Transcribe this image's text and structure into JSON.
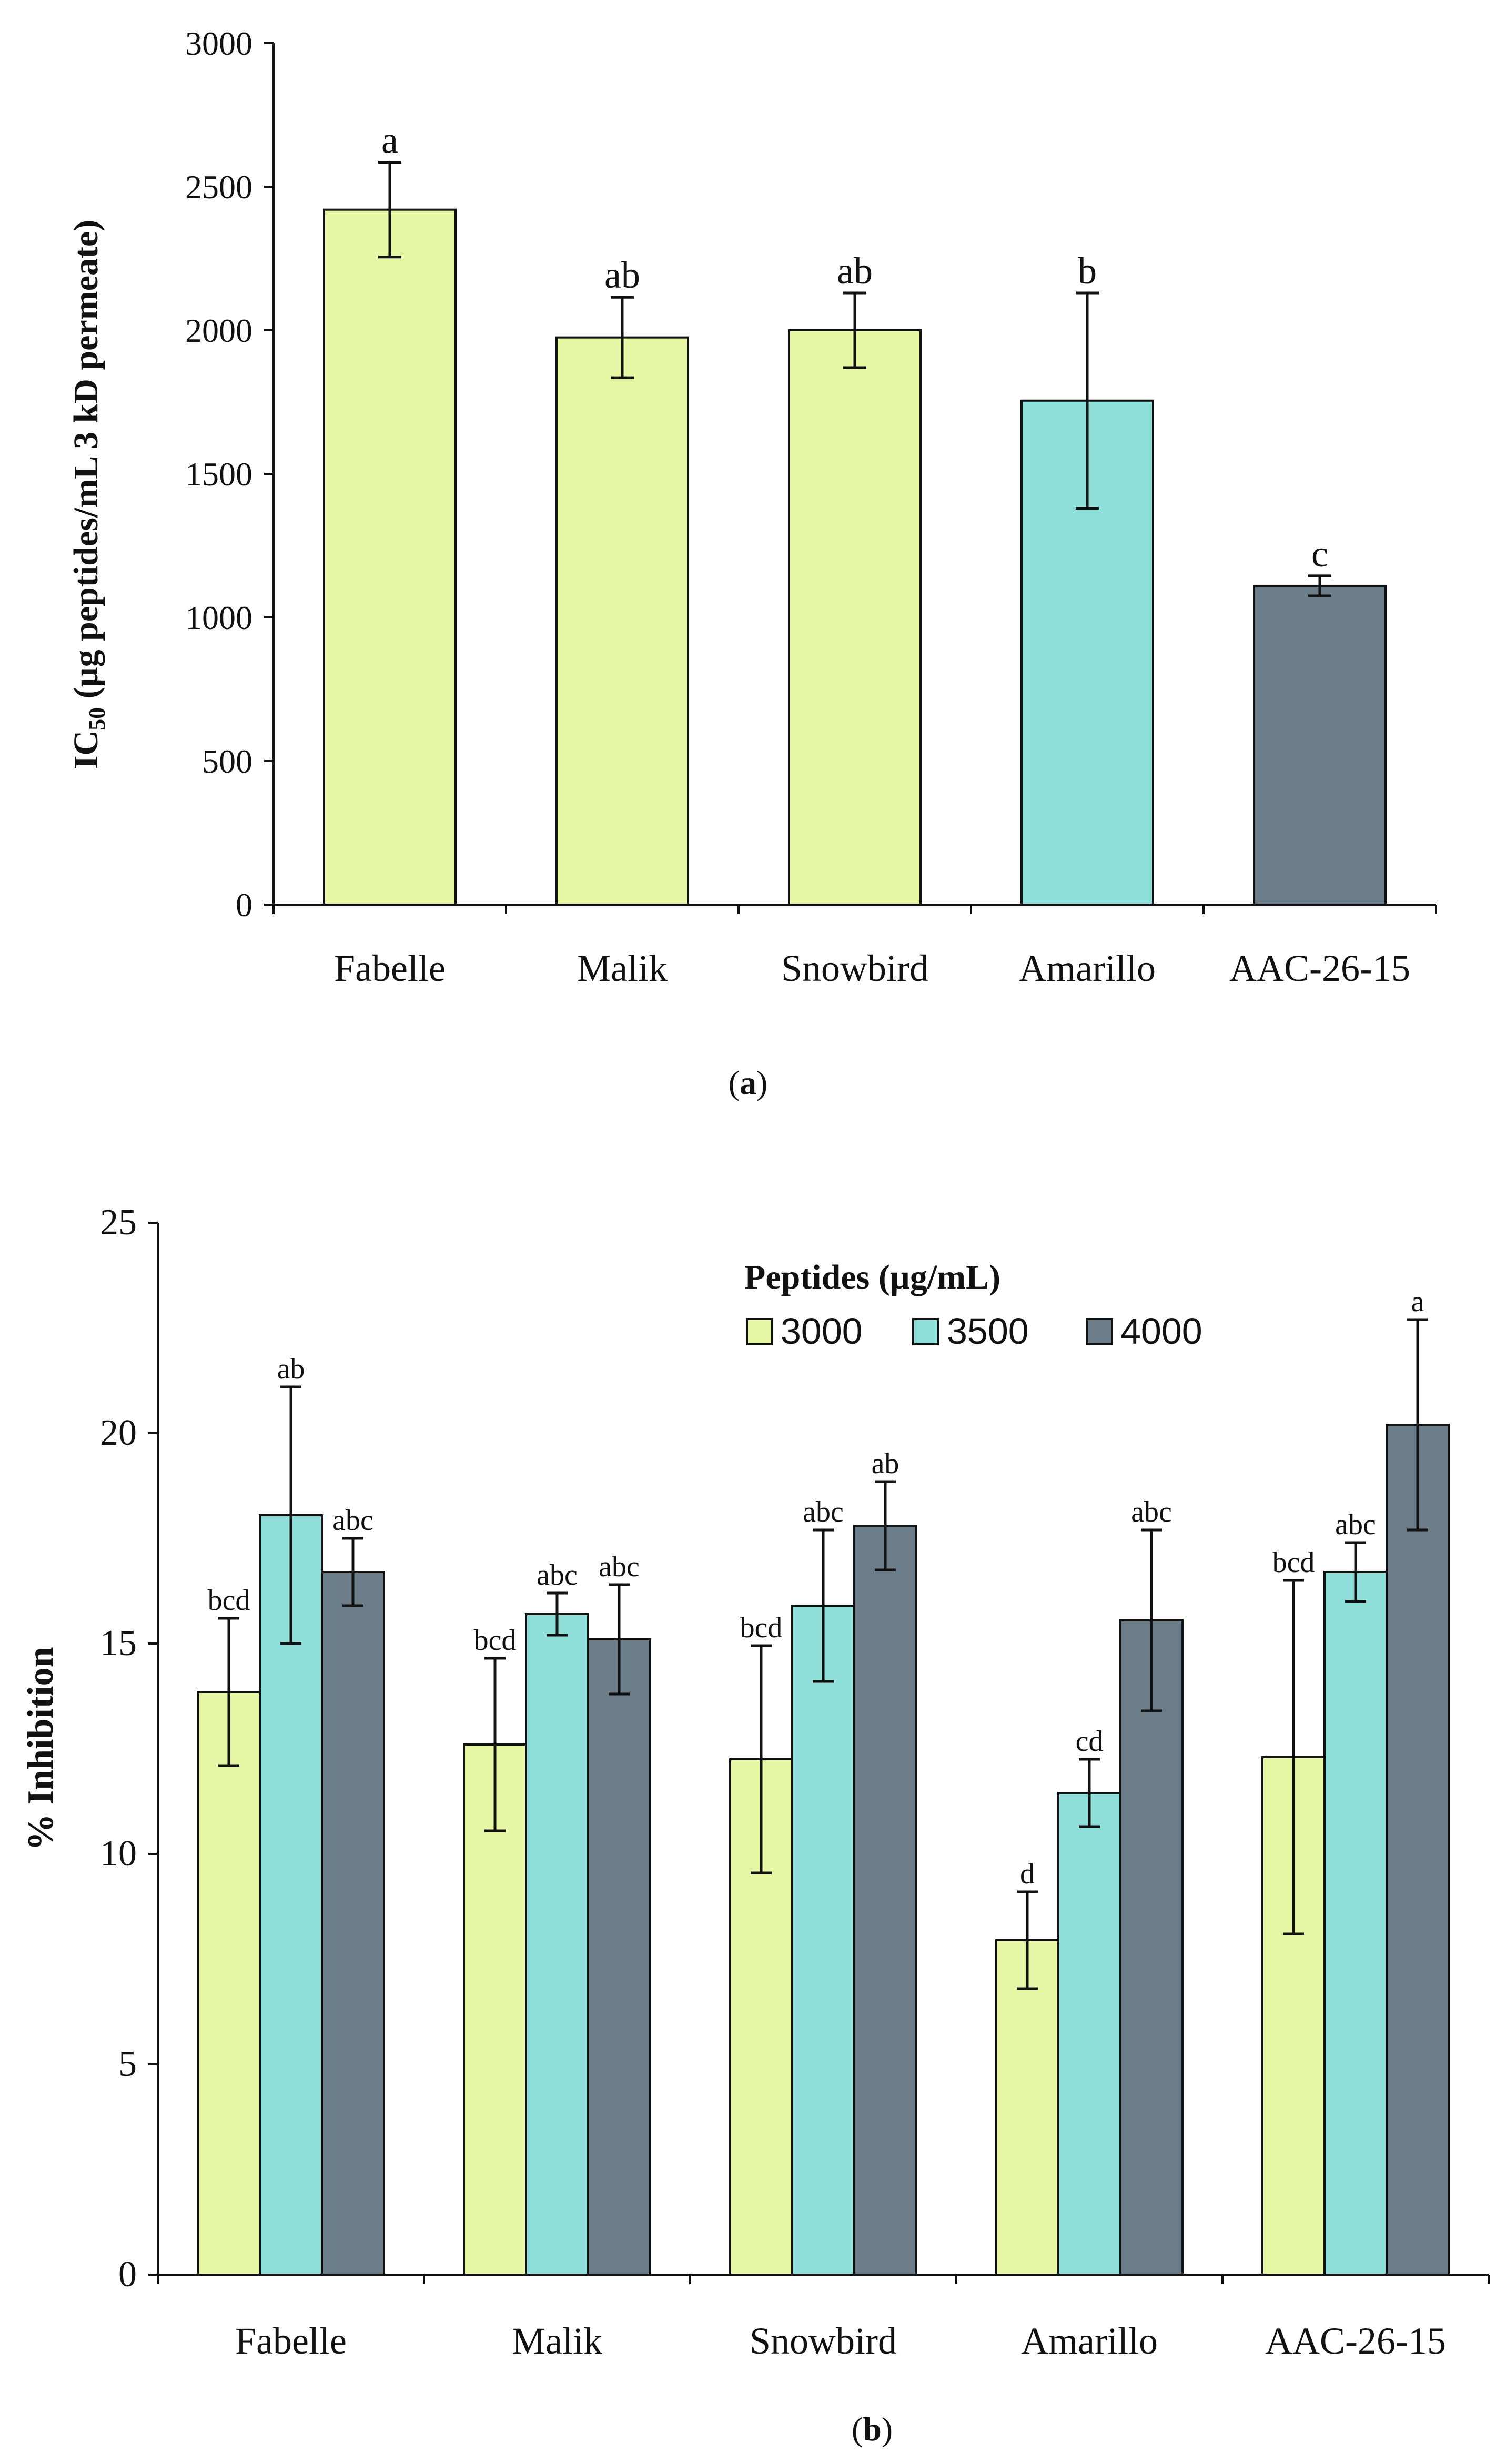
{
  "colors": {
    "green": "#e6f7a6",
    "cyan": "#8fe0db",
    "gray": "#6b7d88",
    "axis": "#111111"
  },
  "chart_data": [
    {
      "type": "bar",
      "panel_label": "a",
      "title": "",
      "ylabel_prefix": "IC",
      "ylabel_sub": "50",
      "ylabel_suffix": " (µg peptides/mL 3 kD permeate)",
      "xlabel": "",
      "ylim": [
        0,
        3000
      ],
      "yticks": [
        0,
        500,
        1000,
        1500,
        2000,
        2500,
        3000
      ],
      "categories": [
        "Fabelle",
        "Malik",
        "Snowbird",
        "Amarillo",
        "AAC-26-15"
      ],
      "values": [
        2420,
        1975,
        2000,
        1755,
        1110
      ],
      "errors": [
        165,
        140,
        130,
        375,
        35
      ],
      "letters": [
        "a",
        "ab",
        "ab",
        "b",
        "c"
      ],
      "bar_colors": [
        "green",
        "green",
        "green",
        "cyan",
        "gray"
      ]
    },
    {
      "type": "bar",
      "panel_label": "b",
      "title": "",
      "ylabel": "% Inhibition",
      "xlabel": "",
      "ylim": [
        0,
        25
      ],
      "yticks": [
        0,
        5,
        10,
        15,
        20,
        25
      ],
      "categories": [
        "Fabelle",
        "Malik",
        "Snowbird",
        "Amarillo",
        "AAC-26-15"
      ],
      "legend_title": "Peptides (µg/mL)",
      "legend_position": "top-right",
      "series": [
        {
          "name": "3000",
          "color": "green",
          "values": [
            13.85,
            12.6,
            12.25,
            7.95,
            12.3
          ],
          "errors": [
            1.75,
            2.05,
            2.7,
            1.15,
            4.2
          ],
          "letters": [
            "bcd",
            "bcd",
            "bcd",
            "d",
            "bcd"
          ]
        },
        {
          "name": "3500",
          "color": "cyan",
          "values": [
            18.05,
            15.7,
            15.9,
            11.45,
            16.7
          ],
          "errors": [
            3.05,
            0.5,
            1.8,
            0.8,
            0.7
          ],
          "letters": [
            "ab",
            "abc",
            "abc",
            "cd",
            "abc"
          ]
        },
        {
          "name": "4000",
          "color": "gray",
          "values": [
            16.7,
            15.1,
            17.8,
            15.55,
            20.2
          ],
          "errors": [
            0.8,
            1.3,
            1.05,
            2.15,
            2.5
          ],
          "letters": [
            "abc",
            "abc",
            "ab",
            "abc",
            "a"
          ]
        }
      ]
    }
  ]
}
